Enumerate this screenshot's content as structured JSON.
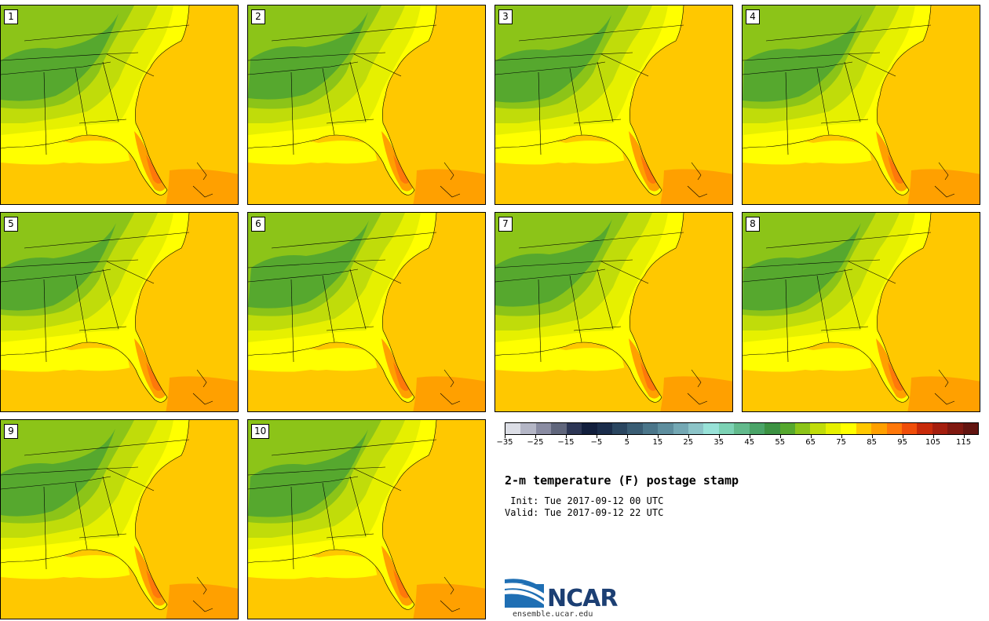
{
  "figure": {
    "title": "2-m temperature (F) postage stamp",
    "init": " Init: Tue 2017-09-12 00 UTC",
    "valid": "Valid: Tue 2017-09-12 22 UTC"
  },
  "members": [
    "1",
    "2",
    "3",
    "4",
    "5",
    "6",
    "7",
    "8",
    "9",
    "10"
  ],
  "colorbar": {
    "min": -35,
    "max": 120,
    "step": 5,
    "tick_labels": [
      "−35",
      "−25",
      "−15",
      "−5",
      "5",
      "15",
      "25",
      "35",
      "45",
      "55",
      "65",
      "75",
      "85",
      "95",
      "105",
      "115"
    ],
    "colors": [
      "#dcdee6",
      "#b4b6c6",
      "#8a8ca2",
      "#60667c",
      "#2d3655",
      "#121f3d",
      "#1b2d4b",
      "#2a4660",
      "#3a5d74",
      "#4b768a",
      "#5e8e9e",
      "#74a8b4",
      "#8cc4c8",
      "#98e2d8",
      "#7cd2b4",
      "#62ba8c",
      "#4aa468",
      "#3c9242",
      "#56a82e",
      "#8cc418",
      "#c0dc0a",
      "#e6f000",
      "#ffff00",
      "#ffc800",
      "#ffa000",
      "#ff780a",
      "#f04e0a",
      "#c82a0a",
      "#a41e0e",
      "#801810",
      "#621410"
    ]
  },
  "map_colors": {
    "t60": "#56a82e",
    "t65": "#8cc418",
    "t70": "#c0dc0a",
    "t75": "#e6f000",
    "t80": "#ffff00",
    "t85": "#ffc800",
    "t90": "#ffa000",
    "t95": "#ff780a"
  },
  "logo": {
    "name": "NCAR",
    "url": "ensemble.ucar.edu"
  }
}
